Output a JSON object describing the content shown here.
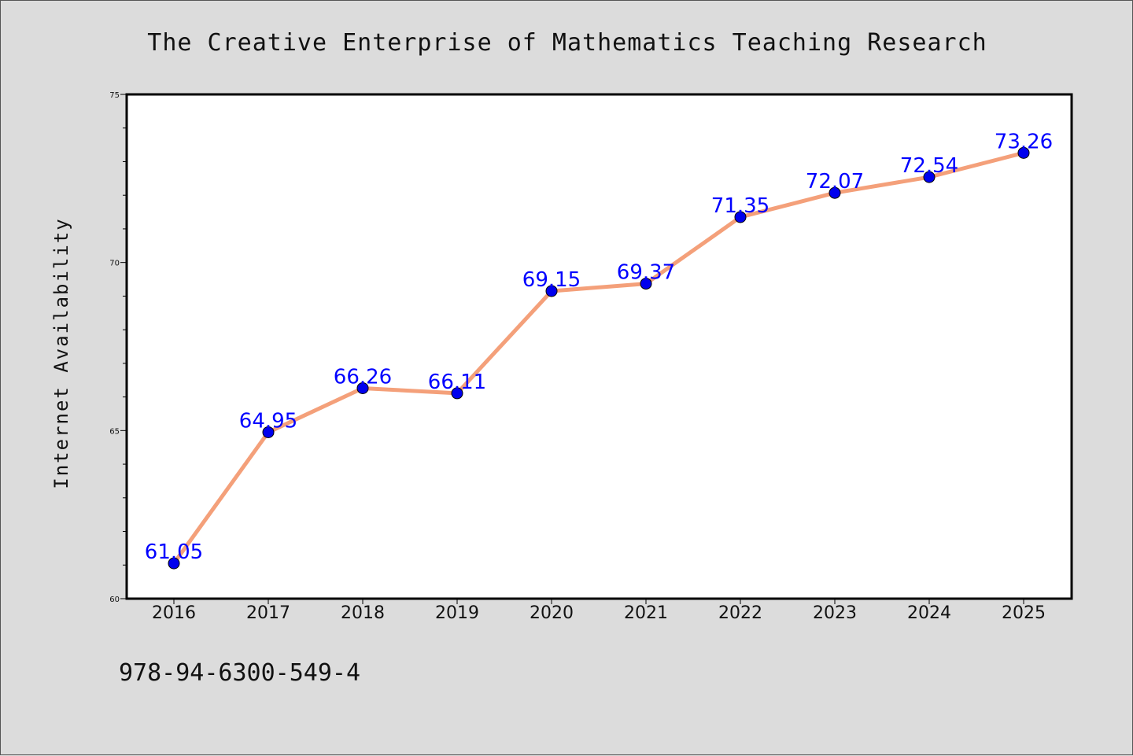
{
  "chart_data": {
    "type": "line",
    "title": "The Creative Enterprise of Mathematics Teaching Research",
    "xlabel": "",
    "ylabel": "Internet Availability",
    "categories": [
      "2016",
      "2017",
      "2018",
      "2019",
      "2020",
      "2021",
      "2022",
      "2023",
      "2024",
      "2025"
    ],
    "series": [
      {
        "values": [
          61.05,
          64.95,
          66.26,
          66.11,
          69.15,
          69.37,
          71.35,
          72.07,
          72.54,
          73.26
        ]
      }
    ],
    "data_labels": [
      "61.05",
      "64.95",
      "66.26",
      "66.11",
      "69.15",
      "69.37",
      "71.35",
      "72.07",
      "72.54",
      "73.26"
    ],
    "ylim": [
      60,
      75
    ],
    "yticks": [
      60,
      65,
      70,
      75
    ],
    "ytick_labels": [
      "60",
      "65",
      "70",
      "75"
    ],
    "grid": false,
    "line_color": "#f4a07a",
    "marker_color": "#0000ee",
    "label_color": "#0000ff"
  },
  "footer": {
    "isbn": "978-94-6300-549-4"
  }
}
